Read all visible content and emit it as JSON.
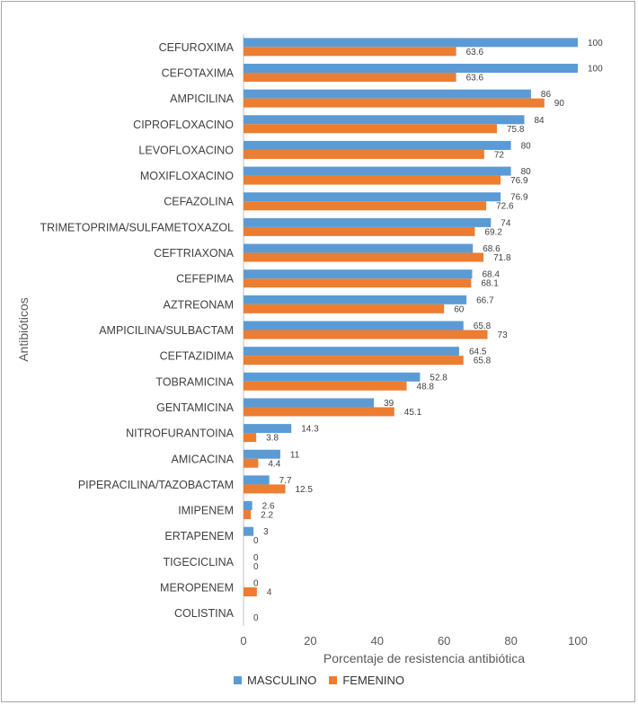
{
  "chart_data": {
    "type": "bar",
    "orientation": "horizontal",
    "categories": [
      "CEFUROXIMA",
      "CEFOTAXIMA",
      "AMPICILINA",
      "CIPROFLOXACINO",
      "LEVOFLOXACINO",
      "MOXIFLOXACINO",
      "CEFAZOLINA",
      "TRIMETOPRIMA/SULFAMETOXAZOL",
      "CEFTRIAXONA",
      "CEFEPIMA",
      "AZTREONAM",
      "AMPICILINA/SULBACTAM",
      "CEFTAZIDIMA",
      "TOBRAMICINA",
      "GENTAMICINA",
      "NITROFURANTOINA",
      "AMICACINA",
      "PIPERACILINA/TAZOBACTAM",
      "IMIPENEM",
      "ERTAPENEM",
      "TIGECICLINA",
      "MEROPENEM",
      "COLISTINA"
    ],
    "series": [
      {
        "name": "MASCULINO",
        "color": "#5b9bd5",
        "values": [
          100,
          100,
          86,
          84,
          80,
          80,
          76.9,
          74,
          68.6,
          68.4,
          66.7,
          65.8,
          64.5,
          52.8,
          39,
          14.3,
          11,
          7.7,
          2.6,
          3,
          0,
          0,
          null
        ],
        "labels": [
          "100",
          "100",
          "86",
          "84",
          "80",
          "80",
          "76.9",
          "74",
          "68.6",
          "68.4",
          "66.7",
          "65.8",
          "64.5",
          "52.8",
          "39",
          "14.3",
          "11",
          "7.7",
          "2.6",
          "3",
          "0",
          "0",
          ""
        ]
      },
      {
        "name": "FEMENINO",
        "color": "#ed7d31",
        "values": [
          63.6,
          63.6,
          90,
          75.8,
          72,
          76.9,
          72.6,
          69.2,
          71.8,
          68.1,
          60,
          73,
          65.8,
          48.8,
          45.1,
          3.8,
          4.4,
          12.5,
          2.2,
          0,
          0,
          4,
          0
        ],
        "labels": [
          "63.6",
          "63.6",
          "90",
          "75.8",
          "72",
          "76.9",
          "72.6",
          "69.2",
          "71.8",
          "68.1",
          "60",
          "73",
          "65.8",
          "48.8",
          "45.1",
          "3.8",
          "4.4",
          "12.5",
          "2.2",
          "0",
          "0",
          "4",
          "0"
        ]
      }
    ],
    "xlabel": "Porcentaje de resistencia antibiótica",
    "ylabel": "Antibióticos",
    "xlim": [
      0,
      100
    ],
    "xticks": [
      "0",
      "20",
      "40",
      "60",
      "80",
      "100"
    ],
    "grid": false,
    "legend_position": "bottom"
  }
}
